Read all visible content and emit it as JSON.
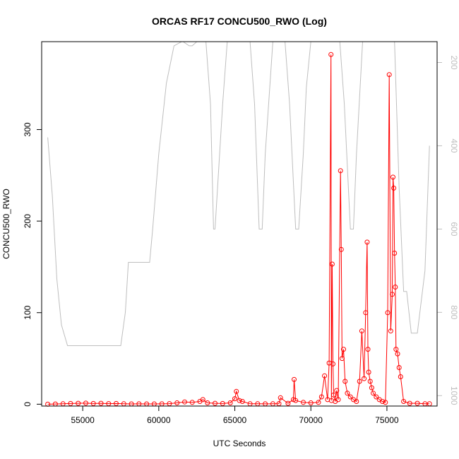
{
  "chart_data": {
    "type": "line",
    "title": "ORCAS RF17 CONCU500_RWO (Log)",
    "xlabel": "UTC Seconds",
    "ylabel": "CONCU500_RWO",
    "xlim": [
      52300,
      78300
    ],
    "ylim": [
      -2,
      396
    ],
    "x_ticks": [
      55000,
      60000,
      65000,
      70000,
      75000
    ],
    "y_ticks": [
      0,
      100,
      200,
      300
    ],
    "y2lim": [
      1025,
      150
    ],
    "y2_ticks": [
      200,
      400,
      600,
      800,
      1000
    ],
    "colors": {
      "series": "#ff0000",
      "secondary": "#bebebe"
    },
    "series": [
      {
        "style": "line+points",
        "color": "#ff0000",
        "x": [
          52700,
          53200,
          53700,
          54200,
          54700,
          55200,
          55700,
          56200,
          56700,
          57200,
          57700,
          58200,
          58700,
          59200,
          59700,
          60200,
          60700,
          61200,
          61700,
          62200,
          62700,
          62900,
          63200,
          63700,
          64200,
          64700,
          65000,
          65100,
          65300,
          65500,
          66000,
          66500,
          67000,
          67500,
          67900,
          68000,
          68500,
          68850,
          68900,
          69000,
          69500,
          70000,
          70500,
          70700,
          70900,
          71100,
          71200,
          71320,
          71350,
          71400,
          71450,
          71500,
          71600,
          71700,
          71800,
          71950,
          72000,
          72050,
          72150,
          72250,
          72400,
          72600,
          72800,
          73000,
          73200,
          73350,
          73500,
          73600,
          73700,
          73750,
          73800,
          73900,
          74000,
          74100,
          74300,
          74500,
          74700,
          74900,
          75050,
          75150,
          75250,
          75350,
          75400,
          75450,
          75500,
          75550,
          75600,
          75700,
          75800,
          75900,
          76100,
          76500,
          77000,
          77500,
          77800
        ],
        "y": [
          0,
          0.2,
          0.5,
          0.8,
          1,
          1.2,
          0.8,
          1,
          0.6,
          0.8,
          0.5,
          0.3,
          0.4,
          0.3,
          0.3,
          0.4,
          0.6,
          1.5,
          2.5,
          2,
          3,
          5,
          1.5,
          1,
          0.8,
          1.5,
          6,
          14,
          4,
          3,
          0.5,
          0.5,
          0.4,
          0.5,
          0.6,
          7,
          1,
          5,
          27,
          4,
          2,
          1.5,
          2,
          8,
          31,
          5,
          45,
          382,
          4,
          153,
          44,
          10,
          3,
          15,
          5,
          255,
          169,
          50,
          60,
          25,
          12,
          8,
          5,
          3,
          25,
          80,
          28,
          100,
          177,
          60,
          35,
          25,
          18,
          12,
          8,
          5,
          3,
          2,
          100,
          360,
          80,
          120,
          248,
          236,
          165,
          128,
          60,
          55,
          40,
          30,
          3,
          1,
          1,
          0.5,
          0.5
        ]
      },
      {
        "style": "line",
        "axis": "right",
        "color": "#bebebe",
        "x": [
          52700,
          53000,
          53300,
          53600,
          54000,
          55000,
          56000,
          57000,
          57500,
          57800,
          58000,
          59000,
          59400,
          59600,
          60000,
          60500,
          61000,
          61500,
          61600,
          62000,
          62200,
          62500,
          62800,
          63100,
          63400,
          63600,
          63700,
          64000,
          64200,
          64500,
          65000,
          65500,
          66000,
          66300,
          66600,
          66800,
          67000,
          67500,
          68000,
          68300,
          68600,
          69000,
          69200,
          69500,
          69700,
          70000,
          70500,
          71000,
          71300,
          71600,
          71900,
          72200,
          72600,
          72800,
          73000,
          73400,
          73900,
          74500,
          75000,
          75500,
          75800,
          76100,
          76300,
          76600,
          77000,
          77500,
          77800
        ],
        "y": [
          380,
          520,
          720,
          830,
          880,
          880,
          880,
          880,
          880,
          800,
          680,
          680,
          680,
          600,
          420,
          250,
          160,
          130,
          130,
          160,
          160,
          130,
          130,
          150,
          300,
          600,
          600,
          420,
          300,
          150,
          150,
          150,
          150,
          300,
          600,
          600,
          420,
          150,
          150,
          150,
          300,
          600,
          600,
          420,
          260,
          150,
          150,
          150,
          150,
          150,
          150,
          300,
          600,
          600,
          420,
          150,
          150,
          150,
          150,
          150,
          500,
          750,
          750,
          850,
          850,
          700,
          400
        ]
      }
    ]
  }
}
